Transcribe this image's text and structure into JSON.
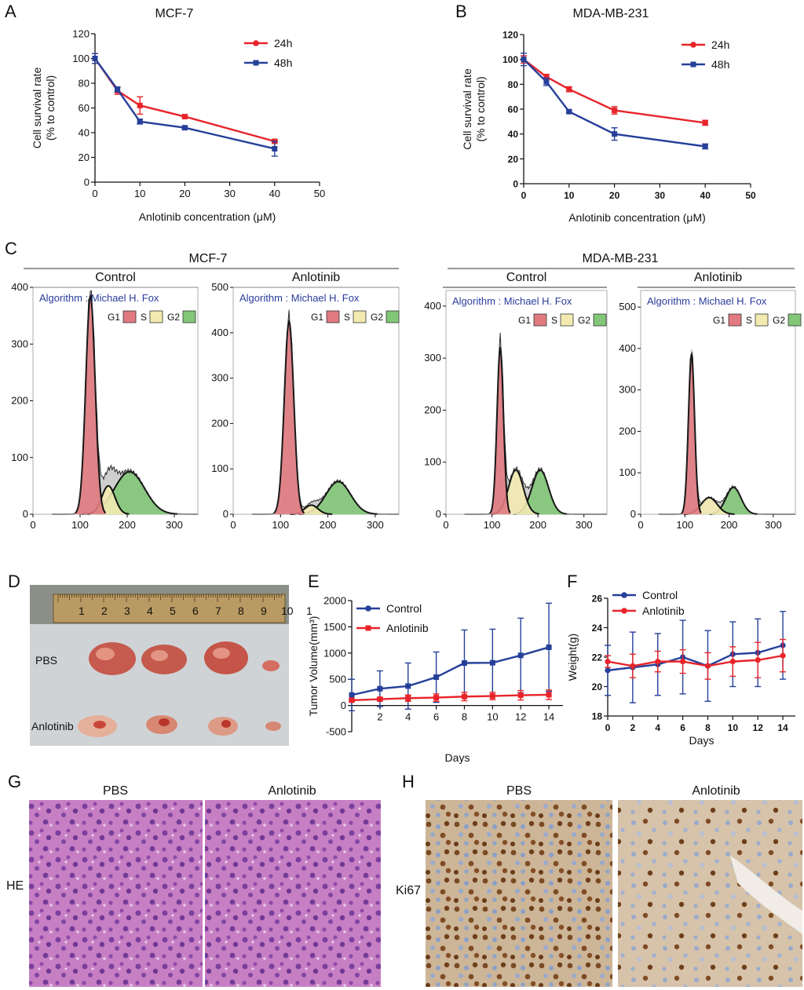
{
  "colors": {
    "red": "#e8242a",
    "blue": "#26409a",
    "g1": "#e07a80",
    "s": "#f2eab0",
    "g2": "#82c778",
    "gray": "#cfcfcf",
    "algo": "#2a3c9a"
  },
  "chart_data": [
    {
      "panel": "A",
      "type": "line",
      "title": "MCF-7",
      "xlabel": "Anlotinib concentration (μM)",
      "ylabel": [
        "Cell survival rate",
        "(% to control)"
      ],
      "xlim": [
        0,
        50
      ],
      "ylim": [
        0,
        120
      ],
      "xticks": [
        0,
        10,
        20,
        30,
        40,
        50
      ],
      "yticks": [
        0,
        20,
        40,
        60,
        80,
        100,
        120
      ],
      "series": [
        {
          "name": "24h",
          "color": "#e8242a",
          "x": [
            0,
            5,
            10,
            20,
            40
          ],
          "y": [
            100,
            74,
            62,
            53,
            33
          ],
          "err": [
            4,
            3,
            7,
            1,
            1
          ]
        },
        {
          "name": "48h",
          "color": "#26409a",
          "x": [
            0,
            5,
            10,
            20,
            40
          ],
          "y": [
            100,
            75,
            49,
            44,
            27
          ],
          "err": [
            4,
            2,
            2,
            1,
            6
          ]
        }
      ]
    },
    {
      "panel": "B",
      "type": "line",
      "title": "MDA-MB-231",
      "xlabel": "Anlotinib concentration (μM)",
      "ylabel": [
        "Cell survival rate",
        "(% to control)"
      ],
      "xlim": [
        0,
        50
      ],
      "ylim": [
        0,
        120
      ],
      "xticks": [
        0,
        10,
        20,
        30,
        40,
        50
      ],
      "yticks": [
        0,
        20,
        40,
        60,
        80,
        100,
        120
      ],
      "series": [
        {
          "name": "24h",
          "color": "#e8242a",
          "x": [
            0,
            5,
            10,
            20,
            40
          ],
          "y": [
            100,
            86,
            76,
            59,
            49
          ],
          "err": [
            3,
            2,
            2,
            3,
            2
          ]
        },
        {
          "name": "48h",
          "color": "#26409a",
          "x": [
            0,
            5,
            10,
            20,
            40
          ],
          "y": [
            100,
            82,
            58,
            40,
            30
          ],
          "err": [
            5,
            3,
            1,
            5,
            2
          ]
        }
      ]
    },
    {
      "panel": "C",
      "type": "histogram",
      "group": "MCF-7",
      "title": "Control",
      "algorithm": "Algorithm : Michael H. Fox",
      "legend": [
        "G1",
        "S",
        "G2"
      ],
      "xlim": [
        0,
        350
      ],
      "ylim": [
        0,
        400
      ],
      "xticks": [
        0,
        100,
        200,
        300
      ],
      "yticks": [
        0,
        100,
        200,
        300,
        400
      ],
      "peaks": {
        "g1": {
          "mu": 122,
          "amp": 385,
          "sd": 10
        },
        "s": {
          "mu": 160,
          "amp": 50,
          "sd": 14
        },
        "g2": {
          "mu": 205,
          "amp": 75,
          "sd": 32
        }
      }
    },
    {
      "panel": "C",
      "type": "histogram",
      "group": "MCF-7",
      "title": "Anlotinib",
      "algorithm": "Algorithm : Michael H. Fox",
      "legend": [
        "G1",
        "S",
        "G2"
      ],
      "xlim": [
        0,
        350
      ],
      "ylim": [
        0,
        500
      ],
      "xticks": [
        0,
        100,
        200,
        300
      ],
      "yticks": [
        0,
        100,
        200,
        300,
        400,
        500
      ],
      "peaks": {
        "g1": {
          "mu": 118,
          "amp": 425,
          "sd": 10
        },
        "s": {
          "mu": 165,
          "amp": 20,
          "sd": 14
        },
        "g2": {
          "mu": 222,
          "amp": 72,
          "sd": 26
        }
      }
    },
    {
      "panel": "C",
      "type": "histogram",
      "group": "MDA-MB-231",
      "title": "Control",
      "algorithm": "Algorithm : Michael H. Fox",
      "legend": [
        "G1",
        "S",
        "G2"
      ],
      "xlim": [
        0,
        350
      ],
      "ylim": [
        0,
        430
      ],
      "xticks": [
        0,
        100,
        200,
        300
      ],
      "yticks": [
        0,
        100,
        200,
        300,
        400
      ],
      "peaks": {
        "g1": {
          "mu": 118,
          "amp": 320,
          "sd": 7
        },
        "s": {
          "mu": 152,
          "amp": 85,
          "sd": 16
        },
        "g2": {
          "mu": 205,
          "amp": 85,
          "sd": 18
        }
      }
    },
    {
      "panel": "C",
      "type": "histogram",
      "group": "MDA-MB-231",
      "title": "Anlotinib",
      "algorithm": "Algorithm : Michael H. Fox",
      "legend": [
        "G1",
        "S",
        "G2"
      ],
      "xlim": [
        0,
        350
      ],
      "ylim": [
        0,
        540
      ],
      "xticks": [
        0,
        100,
        200,
        300
      ],
      "yticks": [
        0,
        100,
        200,
        300,
        400,
        500
      ],
      "peaks": {
        "g1": {
          "mu": 115,
          "amp": 385,
          "sd": 7
        },
        "s": {
          "mu": 155,
          "amp": 40,
          "sd": 18
        },
        "g2": {
          "mu": 210,
          "amp": 65,
          "sd": 17
        }
      }
    },
    {
      "panel": "E",
      "type": "line",
      "title": "",
      "xlabel": "Days",
      "ylabel": "Tumor Volume(mm³)",
      "xlim": [
        0,
        15
      ],
      "ylim": [
        -500,
        2000
      ],
      "xticks": [
        2,
        4,
        6,
        8,
        10,
        12,
        14
      ],
      "yticks": [
        -500,
        0,
        500,
        1000,
        1500,
        2000
      ],
      "series": [
        {
          "name": "Control",
          "color": "#26409a",
          "x": [
            0,
            2,
            4,
            6,
            8,
            10,
            12,
            14
          ],
          "y": [
            200,
            320,
            370,
            540,
            810,
            815,
            955,
            1110
          ],
          "err": [
            300,
            340,
            440,
            480,
            630,
            640,
            710,
            840
          ]
        },
        {
          "name": "Anlotinib",
          "color": "#e8242a",
          "x": [
            0,
            2,
            4,
            6,
            8,
            10,
            12,
            14
          ],
          "y": [
            100,
            120,
            140,
            150,
            170,
            180,
            195,
            205
          ],
          "err": [
            20,
            30,
            60,
            70,
            80,
            70,
            90,
            90
          ]
        }
      ]
    },
    {
      "panel": "F",
      "type": "line",
      "title": "",
      "xlabel": "Days",
      "ylabel": "Weight(g)",
      "xlim": [
        0,
        15
      ],
      "ylim": [
        18,
        26
      ],
      "xticks": [
        0,
        2,
        4,
        6,
        8,
        10,
        12,
        14
      ],
      "yticks": [
        18,
        20,
        22,
        24,
        26
      ],
      "series": [
        {
          "name": "Control",
          "color": "#26409a",
          "x": [
            0,
            2,
            4,
            6,
            8,
            10,
            12,
            14
          ],
          "y": [
            21.1,
            21.3,
            21.5,
            22.0,
            21.4,
            22.2,
            22.3,
            22.8
          ],
          "err": [
            1.7,
            2.4,
            2.1,
            2.5,
            2.4,
            2.2,
            2.3,
            2.3
          ]
        },
        {
          "name": "Anlotinib",
          "color": "#e8242a",
          "x": [
            0,
            2,
            4,
            6,
            8,
            10,
            12,
            14
          ],
          "y": [
            21.7,
            21.4,
            21.7,
            21.7,
            21.4,
            21.7,
            21.8,
            22.1
          ],
          "err": [
            0.4,
            0.8,
            0.7,
            0.8,
            0.9,
            1.0,
            1.2,
            1.1
          ]
        }
      ]
    }
  ],
  "panels": {
    "a": "A",
    "b": "B",
    "c": "C",
    "d": "D",
    "e": "E",
    "f": "F",
    "g": "G",
    "h": "H",
    "c_groups": [
      "MCF-7",
      "MDA-MB-231"
    ]
  },
  "photo_d": {
    "row_labels": [
      "PBS",
      "Anlotinib"
    ],
    "ruler_numbers": [
      "1",
      "2",
      "3",
      "4",
      "5",
      "6",
      "7",
      "8",
      "9",
      "10",
      "1"
    ]
  },
  "panel_g": {
    "columns": [
      "PBS",
      "Anlotinib"
    ],
    "row_label": "HE"
  },
  "panel_h": {
    "columns": [
      "PBS",
      "Anlotinib"
    ],
    "row_label": "Ki67"
  }
}
